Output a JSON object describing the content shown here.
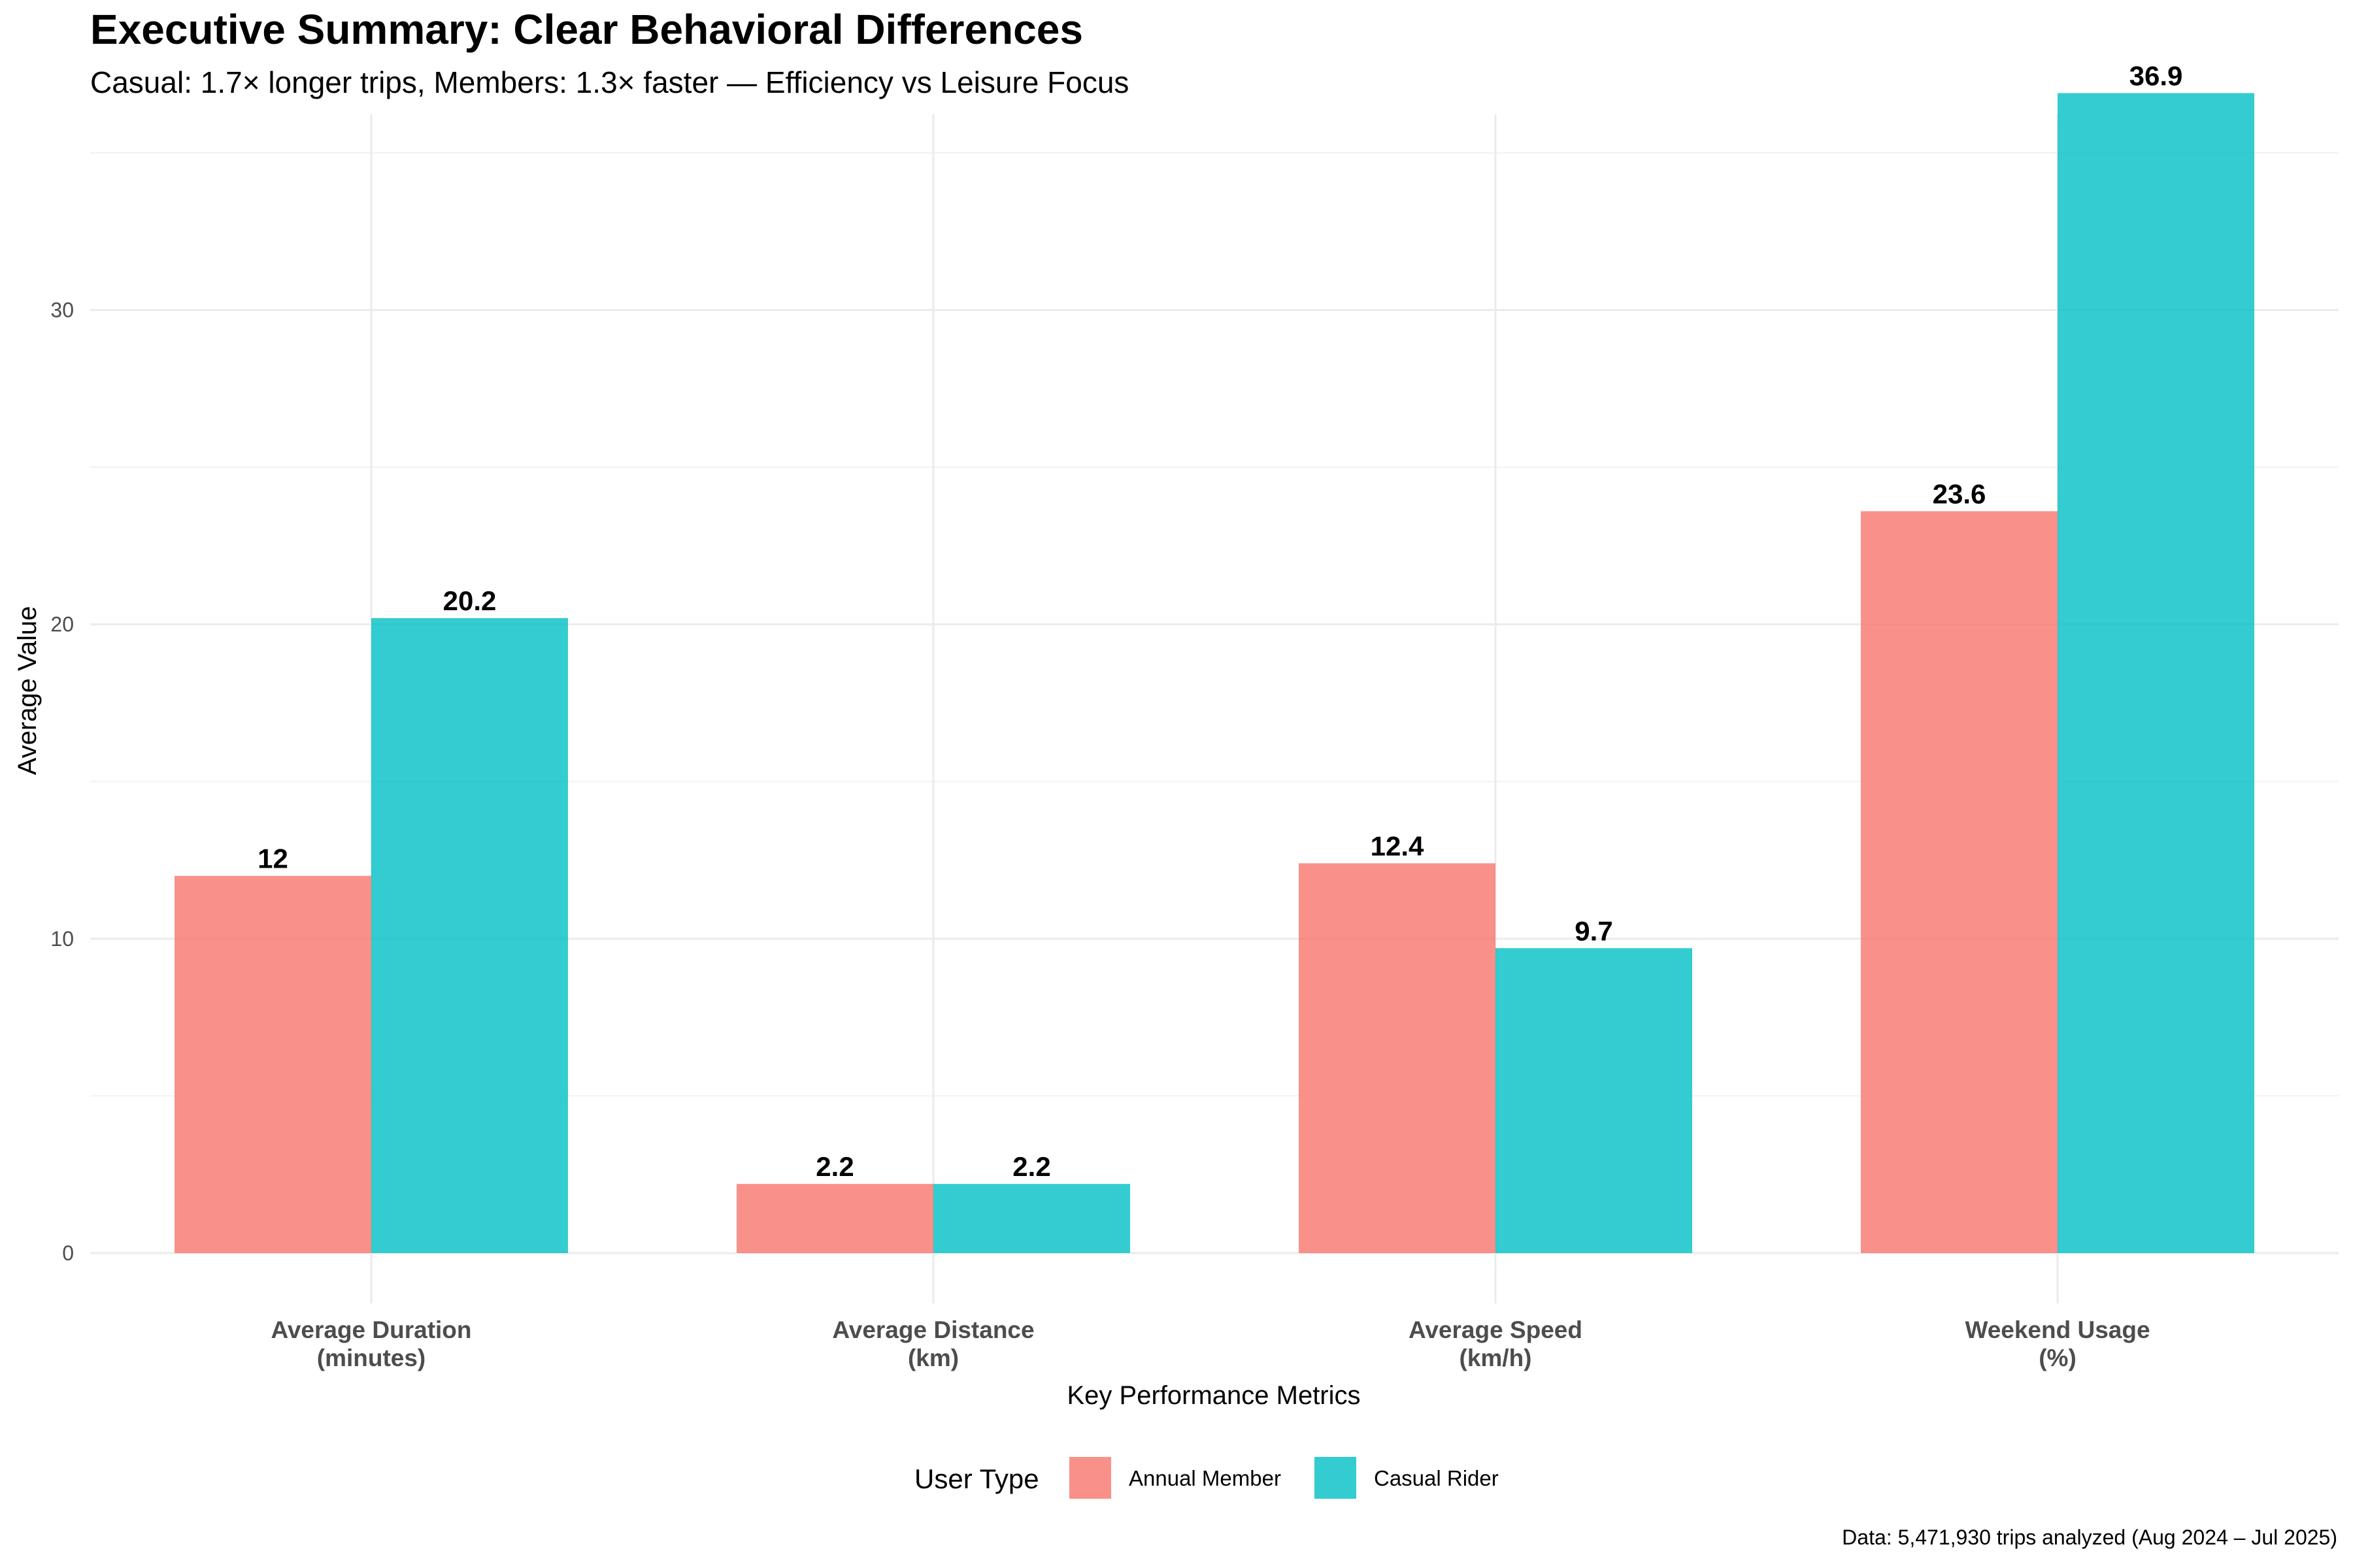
{
  "colors": {
    "annual_member": "#F8766D",
    "casual_rider": "#00BFC4",
    "grid": "#EBEBEB",
    "background": "#FFFFFF"
  },
  "chart_data": {
    "type": "bar",
    "title": "Executive Summary: Clear Behavioral Differences",
    "subtitle": "Casual: 1.7× longer trips, Members: 1.3× faster — Efficiency vs Leisure Focus",
    "xlabel": "Key Performance Metrics",
    "ylabel": "Average Value",
    "caption": "Data: 5,471,930 trips analyzed (Aug 2024 – Jul 2025)",
    "categories": [
      [
        "Average Duration",
        "(minutes)"
      ],
      [
        "Average Distance",
        "(km)"
      ],
      [
        "Average Speed",
        "(km/h)"
      ],
      [
        "Weekend Usage",
        "(%)"
      ]
    ],
    "series": [
      {
        "name": "Annual Member",
        "color": "#F8766D",
        "values": [
          12,
          2.2,
          12.4,
          23.6
        ]
      },
      {
        "name": "Casual Rider",
        "color": "#00BFC4",
        "values": [
          20.2,
          2.2,
          9.7,
          36.9
        ]
      }
    ],
    "data_labels": [
      [
        "12",
        "2.2",
        "12.4",
        "23.6"
      ],
      [
        "20.2",
        "2.2",
        "9.7",
        "36.9"
      ]
    ],
    "yticks": [
      0,
      10,
      20,
      30
    ],
    "ylim": [
      0,
      38.75
    ],
    "grid": true,
    "legend": {
      "title": "User Type",
      "position": "bottom"
    }
  }
}
